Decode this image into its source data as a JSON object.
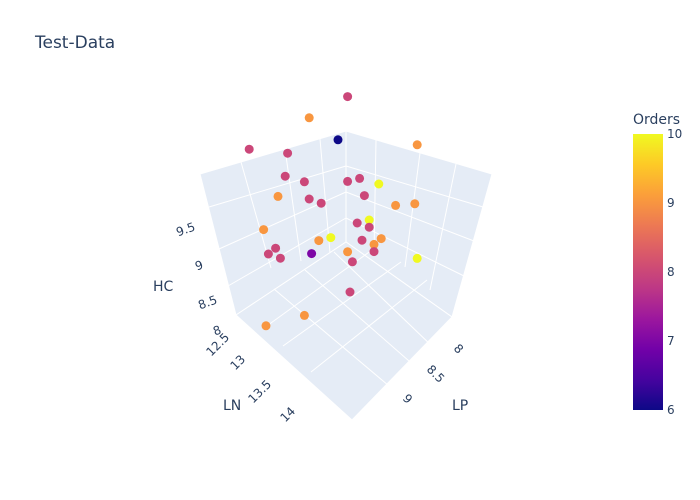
{
  "chart_data": {
    "type": "scatter3d",
    "title": "Test-Data",
    "axes": {
      "x": {
        "label": "LP",
        "ticks": [
          "8",
          "8.5",
          "9"
        ]
      },
      "y": {
        "label": "LN",
        "ticks": [
          "12.5",
          "13",
          "13.5",
          "14"
        ]
      },
      "z": {
        "label": "HC",
        "ticks": [
          "8",
          "8.5",
          "9",
          "9.5"
        ]
      }
    },
    "colorbar": {
      "title": "Orders",
      "range": [
        6,
        10
      ],
      "ticks": [
        "6",
        "7",
        "8",
        "9",
        "10"
      ]
    },
    "points": [
      {
        "lp": 7.8,
        "ln": 12.2,
        "hc": 9.8,
        "orders": 8
      },
      {
        "lp": 7.6,
        "ln": 12.4,
        "hc": 9.55,
        "orders": 9
      },
      {
        "lp": 7.9,
        "ln": 12.5,
        "hc": 9.5,
        "orders": 6
      },
      {
        "lp": 7.4,
        "ln": 12.9,
        "hc": 9.4,
        "orders": 8
      },
      {
        "lp": 7.6,
        "ln": 12.7,
        "hc": 9.3,
        "orders": 8
      },
      {
        "lp": 7.7,
        "ln": 12.9,
        "hc": 9.2,
        "orders": 8
      },
      {
        "lp": 7.8,
        "ln": 12.8,
        "hc": 9.1,
        "orders": 8
      },
      {
        "lp": 7.7,
        "ln": 13.0,
        "hc": 9.0,
        "orders": 9
      },
      {
        "lp": 7.9,
        "ln": 12.9,
        "hc": 9.0,
        "orders": 8
      },
      {
        "lp": 8.0,
        "ln": 12.9,
        "hc": 9.0,
        "orders": 8
      },
      {
        "lp": 8.1,
        "ln": 12.7,
        "hc": 9.2,
        "orders": 8
      },
      {
        "lp": 7.7,
        "ln": 13.2,
        "hc": 8.7,
        "orders": 9
      },
      {
        "lp": 7.8,
        "ln": 13.3,
        "hc": 8.5,
        "orders": 8
      },
      {
        "lp": 7.8,
        "ln": 13.2,
        "hc": 8.5,
        "orders": 8
      },
      {
        "lp": 7.9,
        "ln": 13.3,
        "hc": 8.5,
        "orders": 8
      },
      {
        "lp": 8.1,
        "ln": 13.2,
        "hc": 8.6,
        "orders": 7
      },
      {
        "lp": 8.1,
        "ln": 13.1,
        "hc": 8.7,
        "orders": 9
      },
      {
        "lp": 8.2,
        "ln": 13.1,
        "hc": 8.8,
        "orders": 10
      },
      {
        "lp": 8.3,
        "ln": 12.9,
        "hc": 8.9,
        "orders": 8
      },
      {
        "lp": 8.4,
        "ln": 13.0,
        "hc": 8.8,
        "orders": 8
      },
      {
        "lp": 8.3,
        "ln": 12.8,
        "hc": 9.2,
        "orders": 8
      },
      {
        "lp": 8.2,
        "ln": 12.7,
        "hc": 9.3,
        "orders": 8
      },
      {
        "lp": 8.3,
        "ln": 12.6,
        "hc": 9.2,
        "orders": 10
      },
      {
        "lp": 8.5,
        "ln": 12.4,
        "hc": 9.7,
        "orders": 9
      },
      {
        "lp": 8.6,
        "ln": 12.6,
        "hc": 9.1,
        "orders": 9
      },
      {
        "lp": 8.5,
        "ln": 12.7,
        "hc": 9.1,
        "orders": 9
      },
      {
        "lp": 8.4,
        "ln": 12.9,
        "hc": 9.0,
        "orders": 10
      },
      {
        "lp": 8.4,
        "ln": 12.9,
        "hc": 8.9,
        "orders": 8
      },
      {
        "lp": 8.5,
        "ln": 13.0,
        "hc": 8.8,
        "orders": 9
      },
      {
        "lp": 8.5,
        "ln": 12.9,
        "hc": 8.8,
        "orders": 9
      },
      {
        "lp": 8.4,
        "ln": 13.2,
        "hc": 8.8,
        "orders": 9
      },
      {
        "lp": 8.5,
        "ln": 13.3,
        "hc": 8.8,
        "orders": 8
      },
      {
        "lp": 8.5,
        "ln": 13.0,
        "hc": 8.7,
        "orders": 8
      },
      {
        "lp": 8.6,
        "ln": 13.5,
        "hc": 8.6,
        "orders": 8
      },
      {
        "lp": 8.8,
        "ln": 12.9,
        "hc": 8.7,
        "orders": 10
      },
      {
        "lp": 8.4,
        "ln": 13.8,
        "hc": 8.4,
        "orders": 9
      },
      {
        "lp": 8.2,
        "ln": 14.0,
        "hc": 8.3,
        "orders": 9
      }
    ]
  }
}
